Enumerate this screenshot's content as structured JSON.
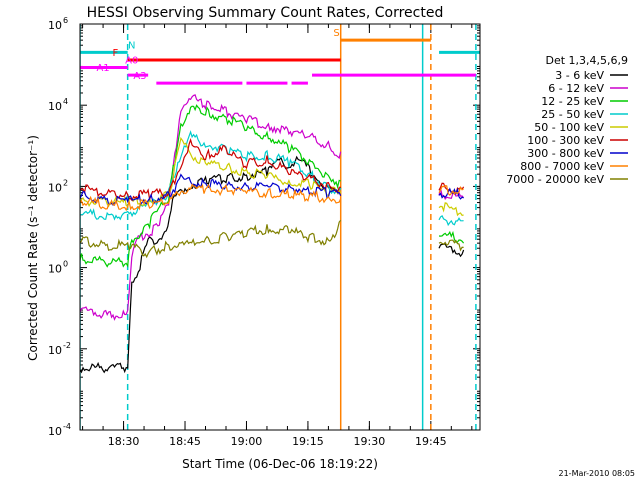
{
  "chart_data": {
    "type": "line",
    "title": "HESSI Observing Summary Count Rates, Corrected",
    "xlabel": "Start Time (06-Dec-06 18:19:22)",
    "ylabel": "Corrected Count Rate (s⁻¹ detector⁻¹)",
    "y_scale": "log",
    "xlim": [
      "18:19:22",
      "19:57:00"
    ],
    "ylim": [
      0.0001,
      1000000
    ],
    "x_ticks": [
      {
        "t": "18:30",
        "label": "18:30"
      },
      {
        "t": "18:45",
        "label": "18:45"
      },
      {
        "t": "19:00",
        "label": "19:00"
      },
      {
        "t": "19:15",
        "label": "19:15"
      },
      {
        "t": "19:30",
        "label": "19:30"
      },
      {
        "t": "19:45",
        "label": "19:45"
      }
    ],
    "y_ticks": [
      {
        "v": 0.0001,
        "base": "10",
        "exp": "-4"
      },
      {
        "v": 0.01,
        "base": "10",
        "exp": "-2"
      },
      {
        "v": 1,
        "base": "10",
        "exp": "0"
      },
      {
        "v": 100,
        "base": "10",
        "exp": "2"
      },
      {
        "v": 10000,
        "base": "10",
        "exp": "4"
      },
      {
        "v": 1000000,
        "base": "10",
        "exp": "6"
      }
    ],
    "legend_title": "Det 1,3,4,5,6,9",
    "legend_position": "outside-right",
    "series": [
      {
        "name": "3 - 6 keV",
        "color": "#000000",
        "values": [
          [
            "18:19:22",
            0.003
          ],
          [
            "18:26",
            0.003
          ],
          [
            "18:31",
            0.003
          ],
          [
            "18:32",
            0.3
          ],
          [
            "18:34",
            1
          ],
          [
            "18:36",
            4
          ],
          [
            "18:40",
            5
          ],
          [
            "18:42",
            40
          ],
          [
            "18:45",
            80
          ],
          [
            "18:50",
            120
          ],
          [
            "18:55",
            140
          ],
          [
            "19:00",
            160
          ],
          [
            "19:05",
            200
          ],
          [
            "19:08",
            350
          ],
          [
            "19:10",
            300
          ],
          [
            "19:13",
            380
          ],
          [
            "19:15",
            250
          ],
          [
            "19:18",
            120
          ],
          [
            "19:20",
            70
          ],
          [
            "19:22",
            60
          ],
          [
            "19:23",
            100
          ],
          [
            "19:47",
            3
          ],
          [
            "19:53",
            2
          ]
        ]
      },
      {
        "name": "6 - 12 keV",
        "color": "#cc00cc",
        "values": [
          [
            "18:19:22",
            0.08
          ],
          [
            "18:26",
            0.06
          ],
          [
            "18:31",
            0.06
          ],
          [
            "18:32",
            2
          ],
          [
            "18:34",
            5
          ],
          [
            "18:38",
            8
          ],
          [
            "18:41",
            30
          ],
          [
            "18:44",
            8000
          ],
          [
            "18:46",
            14000
          ],
          [
            "18:50",
            9000
          ],
          [
            "18:55",
            6000
          ],
          [
            "19:00",
            4000
          ],
          [
            "19:05",
            2800
          ],
          [
            "19:10",
            2000
          ],
          [
            "19:15",
            1500
          ],
          [
            "19:20",
            900
          ],
          [
            "19:23",
            500
          ],
          [
            "19:47",
            60
          ],
          [
            "19:53",
            45
          ]
        ]
      },
      {
        "name": "12 - 25 keV",
        "color": "#00cc00",
        "values": [
          [
            "18:19:22",
            1.5
          ],
          [
            "18:26",
            1.2
          ],
          [
            "18:31",
            1.2
          ],
          [
            "18:32",
            4
          ],
          [
            "18:36",
            10
          ],
          [
            "18:41",
            50
          ],
          [
            "18:44",
            3000
          ],
          [
            "18:46",
            7000
          ],
          [
            "18:50",
            6000
          ],
          [
            "18:55",
            4000
          ],
          [
            "19:00",
            2500
          ],
          [
            "19:05",
            1500
          ],
          [
            "19:10",
            800
          ],
          [
            "19:15",
            400
          ],
          [
            "19:20",
            150
          ],
          [
            "19:23",
            100
          ],
          [
            "19:47",
            6
          ],
          [
            "19:53",
            4
          ]
        ]
      },
      {
        "name": "25 - 50 keV",
        "color": "#00cccc",
        "values": [
          [
            "18:19:22",
            20
          ],
          [
            "18:26",
            15
          ],
          [
            "18:31",
            20
          ],
          [
            "18:35",
            25
          ],
          [
            "18:41",
            60
          ],
          [
            "18:44",
            600
          ],
          [
            "18:46",
            1500
          ],
          [
            "18:50",
            1000
          ],
          [
            "18:55",
            700
          ],
          [
            "19:00",
            500
          ],
          [
            "19:05",
            500
          ],
          [
            "19:10",
            350
          ],
          [
            "19:15",
            180
          ],
          [
            "19:20",
            80
          ],
          [
            "19:23",
            60
          ],
          [
            "19:47",
            15
          ],
          [
            "19:53",
            10
          ]
        ]
      },
      {
        "name": "50 - 100 keV",
        "color": "#cccc00",
        "values": [
          [
            "18:19:22",
            40
          ],
          [
            "18:26",
            35
          ],
          [
            "18:31",
            35
          ],
          [
            "18:36",
            40
          ],
          [
            "18:41",
            50
          ],
          [
            "18:44",
            1200
          ],
          [
            "18:46",
            600
          ],
          [
            "18:50",
            300
          ],
          [
            "18:55",
            250
          ],
          [
            "19:00",
            200
          ],
          [
            "19:05",
            150
          ],
          [
            "19:10",
            120
          ],
          [
            "19:15",
            100
          ],
          [
            "19:20",
            60
          ],
          [
            "19:23",
            70
          ],
          [
            "19:47",
            30
          ],
          [
            "19:53",
            20
          ]
        ]
      },
      {
        "name": "100 - 300 keV",
        "color": "#cc0000",
        "values": [
          [
            "18:19:22",
            80
          ],
          [
            "18:26",
            60
          ],
          [
            "18:31",
            50
          ],
          [
            "18:36",
            55
          ],
          [
            "18:41",
            60
          ],
          [
            "18:44",
            300
          ],
          [
            "18:46",
            1000
          ],
          [
            "18:50",
            500
          ],
          [
            "18:55",
            700
          ],
          [
            "19:00",
            300
          ],
          [
            "19:05",
            400
          ],
          [
            "19:10",
            200
          ],
          [
            "19:15",
            150
          ],
          [
            "19:20",
            90
          ],
          [
            "19:23",
            80
          ],
          [
            "19:47",
            80
          ],
          [
            "19:53",
            70
          ]
        ]
      },
      {
        "name": "300 - 800 keV",
        "color": "#0000cc",
        "values": [
          [
            "18:19:22",
            50
          ],
          [
            "18:26",
            40
          ],
          [
            "18:31",
            38
          ],
          [
            "18:36",
            42
          ],
          [
            "18:41",
            50
          ],
          [
            "18:44",
            130
          ],
          [
            "18:46",
            110
          ],
          [
            "18:50",
            100
          ],
          [
            "18:55",
            95
          ],
          [
            "19:00",
            90
          ],
          [
            "19:05",
            85
          ],
          [
            "19:10",
            80
          ],
          [
            "19:15",
            70
          ],
          [
            "19:20",
            60
          ],
          [
            "19:23",
            55
          ],
          [
            "19:47",
            60
          ],
          [
            "19:53",
            55
          ]
        ]
      },
      {
        "name": "800 - 7000 keV",
        "color": "#ff8000",
        "values": [
          [
            "18:19:22",
            40
          ],
          [
            "18:26",
            30
          ],
          [
            "18:31",
            28
          ],
          [
            "18:36",
            32
          ],
          [
            "18:41",
            35
          ],
          [
            "18:44",
            70
          ],
          [
            "18:46",
            80
          ],
          [
            "18:50",
            75
          ],
          [
            "18:55",
            70
          ],
          [
            "19:00",
            65
          ],
          [
            "19:05",
            60
          ],
          [
            "19:10",
            55
          ],
          [
            "19:15",
            50
          ],
          [
            "19:20",
            45
          ],
          [
            "19:23",
            40
          ],
          [
            "19:47",
            70
          ],
          [
            "19:53",
            65
          ]
        ]
      },
      {
        "name": "7000 - 20000 keV",
        "color": "#808000",
        "values": [
          [
            "18:19:22",
            4
          ],
          [
            "18:26",
            3
          ],
          [
            "18:31",
            3
          ],
          [
            "18:36",
            2
          ],
          [
            "18:41",
            3
          ],
          [
            "18:44",
            3
          ],
          [
            "18:50",
            4
          ],
          [
            "18:55",
            5
          ],
          [
            "19:00",
            6
          ],
          [
            "19:05",
            8
          ],
          [
            "19:10",
            7
          ],
          [
            "19:15",
            5
          ],
          [
            "19:20",
            4
          ],
          [
            "19:23",
            10
          ],
          [
            "19:47",
            4
          ],
          [
            "19:53",
            3
          ]
        ]
      }
    ],
    "annotations": [
      {
        "label": "N",
        "color": "#00cccc",
        "y": 200000,
        "ranges": [
          [
            "18:19:22",
            "18:31"
          ],
          [
            "19:47",
            "19:57"
          ]
        ]
      },
      {
        "label": "F",
        "color": "#ff0000",
        "y": 130000,
        "ranges": [
          [
            "18:31",
            "19:23"
          ]
        ]
      },
      {
        "label": "A0",
        "color": "#ff00ff",
        "y": 85000,
        "ranges": [
          [
            "18:19:22",
            "18:31"
          ]
        ]
      },
      {
        "label": "A1",
        "color": "#ff00ff",
        "y": 55000,
        "ranges": [
          [
            "18:31",
            "18:36"
          ],
          [
            "19:16",
            "19:56"
          ]
        ]
      },
      {
        "label": "A3",
        "color": "#ff00ff",
        "y": 35000,
        "ranges": [
          [
            "18:38",
            "18:59"
          ],
          [
            "19:00",
            "19:10"
          ],
          [
            "19:11",
            "19:15"
          ]
        ]
      },
      {
        "label": "S",
        "color": "#ff8000",
        "y": 400000,
        "ranges": [
          [
            "19:23",
            "19:45"
          ]
        ]
      }
    ],
    "vertical_markers": [
      {
        "t": "18:19:22",
        "color": "#00cccc",
        "style": "solid"
      },
      {
        "t": "18:31",
        "color": "#00cccc",
        "style": "dashed"
      },
      {
        "t": "19:23",
        "color": "#ff8000",
        "style": "solid"
      },
      {
        "t": "19:43",
        "color": "#00cccc",
        "style": "solid"
      },
      {
        "t": "19:45",
        "color": "#ff8000",
        "style": "dashed"
      },
      {
        "t": "19:56",
        "color": "#00cccc",
        "style": "dashed"
      }
    ],
    "footer_date": "21-Mar-2010 08:05"
  }
}
